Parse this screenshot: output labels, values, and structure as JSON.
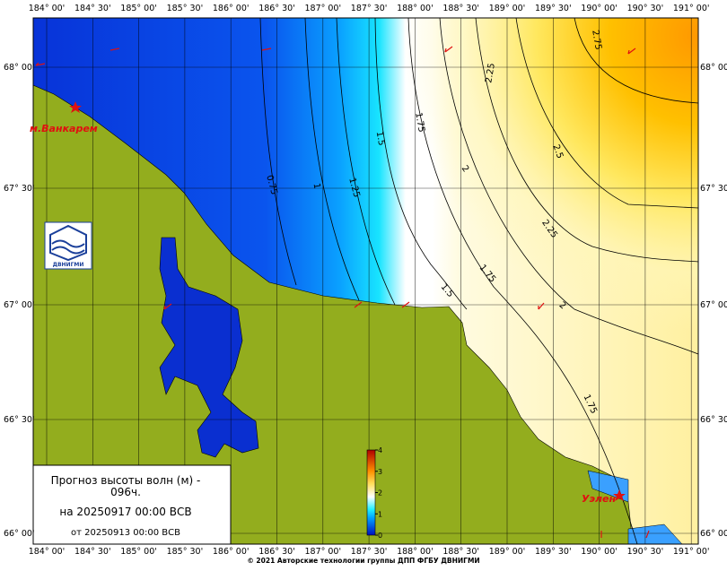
{
  "map": {
    "lon_labels_top": [
      "184° 00'",
      "184° 30'",
      "185° 00'",
      "185° 30'",
      "186° 00'",
      "186° 30'",
      "187° 00'",
      "187° 30'",
      "188° 00'",
      "188° 30'",
      "189° 00'",
      "189° 30'",
      "190° 00'",
      "190° 30'",
      "191° 00'"
    ],
    "lon_labels_bottom": [
      "184° 00'",
      "184° 30'",
      "185° 00'",
      "185° 30'",
      "186° 00'",
      "186° 30'",
      "187° 00'",
      "187° 30'",
      "188° 00'",
      "188° 30'",
      "189° 00'",
      "189° 30'",
      "190° 00'",
      "190° 30'",
      "191° 00'"
    ],
    "lat_labels": [
      "68° 00'",
      "67° 30'",
      "67° 00'",
      "66° 30'",
      "66° 00'"
    ],
    "contour_labels": [
      "0.75",
      "1",
      "1.25",
      "1.5",
      "1.75",
      "2",
      "2.25",
      "2.5",
      "2.75",
      "2.25",
      "1.75",
      "1.5",
      "2",
      "1.75"
    ],
    "places": [
      "м.Ванкарем",
      "Уэлен"
    ],
    "legend": {
      "ticks": [
        0,
        1,
        2,
        3,
        4
      ]
    },
    "logo_text": "ДВНИГМИ",
    "info": {
      "line1": "Прогноз высоты волн (м) -",
      "line2": "096ч.",
      "line3": "на 20250917 00:00 ВСВ",
      "line4": "от 20250913 00:00 ВСВ"
    },
    "copyright": "© 2021 Авторские технологии группы ДПП ФГБУ ДВНИГМИ"
  }
}
